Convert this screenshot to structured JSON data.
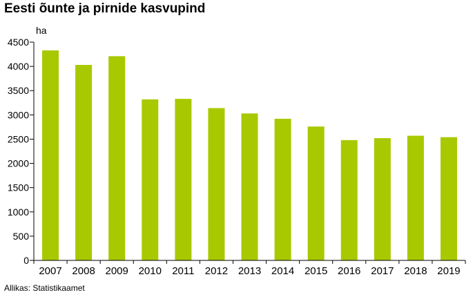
{
  "title": "Eesti õunte ja pirnide kasvupind",
  "source": "Allikas: Statistikaamet",
  "colors": {
    "bar": "#a8c900",
    "axis": "#000000",
    "tick": "#000000"
  },
  "chart_data": {
    "type": "bar",
    "title": "Eesti õunte ja pirnide kasvupind",
    "ylabel": "ha",
    "xlabel": "",
    "ylim": [
      0,
      4500
    ],
    "yticks": [
      0,
      500,
      1000,
      1500,
      2000,
      2500,
      3000,
      3500,
      4000,
      4500
    ],
    "grid": false,
    "categories": [
      "2007",
      "2008",
      "2009",
      "2010",
      "2011",
      "2012",
      "2013",
      "2014",
      "2015",
      "2016",
      "2017",
      "2018",
      "2019"
    ],
    "values": [
      4330,
      4030,
      4210,
      3320,
      3330,
      3140,
      3030,
      2920,
      2760,
      2480,
      2520,
      2570,
      2540
    ]
  }
}
